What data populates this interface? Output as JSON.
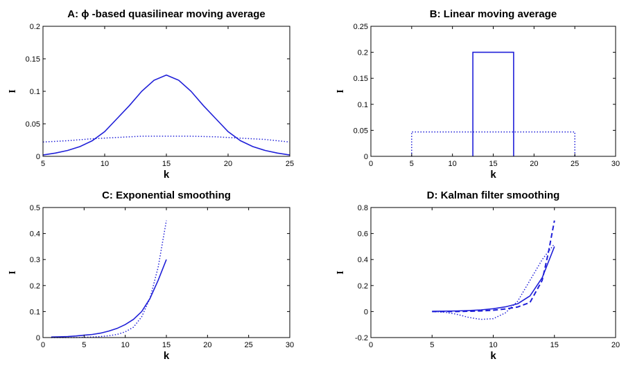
{
  "chart_data": [
    {
      "id": "A",
      "type": "line",
      "title": "A: ϕ -based quasilinear moving average",
      "xlabel": "k",
      "ylabel": "I",
      "xlim": [
        5,
        25
      ],
      "ylim": [
        0,
        0.2
      ],
      "xticks": [
        "5",
        "10",
        "15",
        "20",
        "25"
      ],
      "yticks": [
        "0",
        "0.05",
        "0.1",
        "0.15",
        "0.2"
      ],
      "series": [
        {
          "style": "solid",
          "color": "#1f1fd8",
          "x": [
            5,
            6,
            7,
            8,
            9,
            10,
            11,
            12,
            13,
            14,
            15,
            16,
            17,
            18,
            19,
            20,
            21,
            22,
            23,
            24,
            25
          ],
          "y": [
            0.002,
            0.005,
            0.009,
            0.015,
            0.024,
            0.038,
            0.058,
            0.078,
            0.1,
            0.117,
            0.125,
            0.117,
            0.1,
            0.078,
            0.058,
            0.038,
            0.024,
            0.015,
            0.009,
            0.005,
            0.002
          ]
        },
        {
          "style": "dotted",
          "color": "#1f1fd8",
          "x": [
            5,
            7,
            9,
            11,
            13,
            15,
            17,
            19,
            21,
            23,
            25
          ],
          "y": [
            0.022,
            0.024,
            0.027,
            0.029,
            0.031,
            0.031,
            0.031,
            0.03,
            0.028,
            0.026,
            0.022
          ]
        }
      ]
    },
    {
      "id": "B",
      "type": "line",
      "title": "B: Linear moving average",
      "xlabel": "k",
      "ylabel": "I",
      "xlim": [
        0,
        30
      ],
      "ylim": [
        0,
        0.25
      ],
      "xticks": [
        "0",
        "5",
        "10",
        "15",
        "20",
        "25",
        "30"
      ],
      "yticks": [
        "0",
        "0.05",
        "0.1",
        "0.15",
        "0.2",
        "0.25"
      ],
      "series": [
        {
          "style": "solid",
          "color": "#1f1fd8",
          "x": [
            12.5,
            12.5,
            17.5,
            17.5
          ],
          "y": [
            0,
            0.2,
            0.2,
            0
          ]
        },
        {
          "style": "dotted",
          "color": "#1f1fd8",
          "x": [
            5,
            5,
            25,
            25
          ],
          "y": [
            0,
            0.047,
            0.047,
            0
          ]
        }
      ]
    },
    {
      "id": "C",
      "type": "line",
      "title": "C: Exponential smoothing",
      "xlabel": "k",
      "ylabel": "I",
      "xlim": [
        0,
        30
      ],
      "ylim": [
        0,
        0.5
      ],
      "xticks": [
        "0",
        "5",
        "10",
        "15",
        "20",
        "25",
        "30"
      ],
      "yticks": [
        "0",
        "0.1",
        "0.2",
        "0.3",
        "0.4",
        "0.5"
      ],
      "series": [
        {
          "style": "solid",
          "color": "#1f1fd8",
          "x": [
            1,
            2,
            3,
            4,
            5,
            6,
            7,
            8,
            9,
            10,
            11,
            12,
            13,
            14,
            15
          ],
          "y": [
            0.002,
            0.003,
            0.004,
            0.006,
            0.009,
            0.012,
            0.017,
            0.025,
            0.035,
            0.05,
            0.07,
            0.1,
            0.15,
            0.22,
            0.3
          ]
        },
        {
          "style": "dotted",
          "color": "#1f1fd8",
          "x": [
            1,
            2,
            3,
            4,
            5,
            6,
            7,
            8,
            9,
            10,
            11,
            12,
            13,
            14,
            15
          ],
          "y": [
            0.0,
            0.0,
            0.0,
            0.0,
            0.001,
            0.002,
            0.004,
            0.007,
            0.012,
            0.022,
            0.04,
            0.08,
            0.15,
            0.27,
            0.45
          ]
        }
      ]
    },
    {
      "id": "D",
      "type": "line",
      "title": "D: Kalman filter smoothing",
      "xlabel": "k",
      "ylabel": "I",
      "xlim": [
        0,
        20
      ],
      "ylim": [
        -0.2,
        0.8
      ],
      "xticks": [
        "0",
        "5",
        "10",
        "15",
        "20"
      ],
      "yticks": [
        "-0.2",
        "0",
        "0.2",
        "0.4",
        "0.6",
        "0.8"
      ],
      "series": [
        {
          "style": "solid",
          "color": "#1f1fd8",
          "x": [
            5,
            6,
            7,
            8,
            9,
            10,
            11,
            12,
            13,
            14,
            15
          ],
          "y": [
            0.002,
            0.003,
            0.005,
            0.008,
            0.013,
            0.022,
            0.036,
            0.06,
            0.12,
            0.26,
            0.5
          ]
        },
        {
          "style": "dashed",
          "color": "#1f1fd8",
          "x": [
            5,
            6,
            7,
            8,
            9,
            10,
            11,
            12,
            13,
            14,
            14.5,
            15
          ],
          "y": [
            0.0,
            0.0,
            0.0,
            0.002,
            0.005,
            0.01,
            0.02,
            0.035,
            0.07,
            0.24,
            0.45,
            0.7
          ]
        },
        {
          "style": "dotted",
          "color": "#1f1fd8",
          "x": [
            5,
            6,
            7,
            8,
            9,
            10,
            11,
            12,
            13,
            14,
            15
          ],
          "y": [
            0.0,
            -0.005,
            -0.02,
            -0.045,
            -0.06,
            -0.055,
            -0.01,
            0.08,
            0.24,
            0.4,
            0.52
          ]
        }
      ]
    }
  ]
}
